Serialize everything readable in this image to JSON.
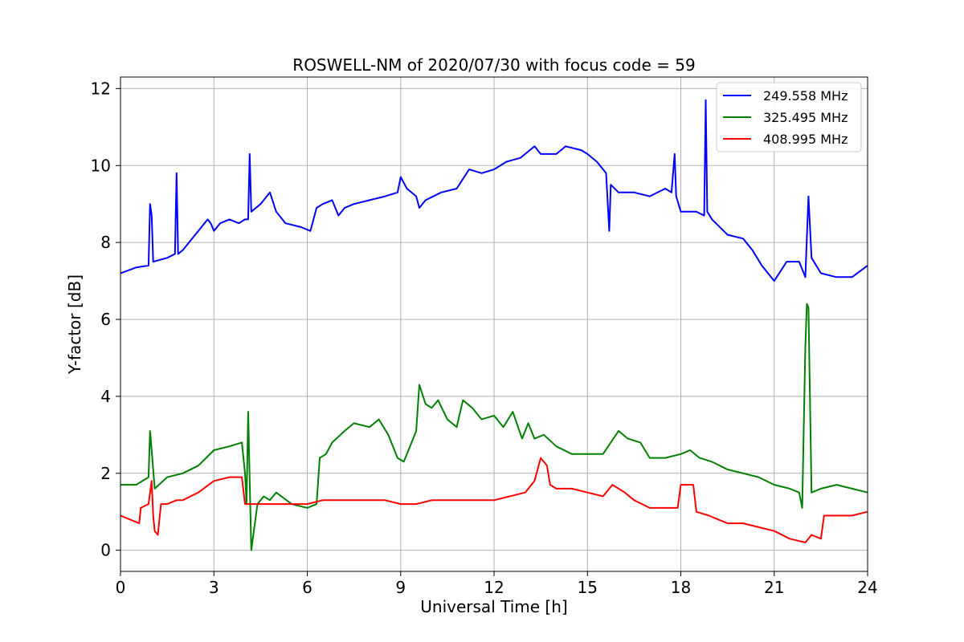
{
  "chart_data": {
    "type": "line",
    "title": "ROSWELL-NM of 2020/07/30 with focus code = 59",
    "xlabel": "Universal Time [h]",
    "ylabel": "Y-factor [dB]",
    "xlim": [
      0,
      24
    ],
    "ylim": [
      -0.55,
      12.3
    ],
    "xticks": [
      0,
      3,
      6,
      9,
      12,
      15,
      18,
      21,
      24
    ],
    "yticks": [
      0,
      2,
      4,
      6,
      8,
      10,
      12
    ],
    "grid": true,
    "legend_position": "top-right",
    "series": [
      {
        "name": "249.558 MHz",
        "color": "#0000ff",
        "points": [
          [
            0,
            7.2
          ],
          [
            0.5,
            7.35
          ],
          [
            0.9,
            7.4
          ],
          [
            0.95,
            9.0
          ],
          [
            1.0,
            8.7
          ],
          [
            1.05,
            7.5
          ],
          [
            1.5,
            7.6
          ],
          [
            1.75,
            7.7
          ],
          [
            1.8,
            9.8
          ],
          [
            1.85,
            7.7
          ],
          [
            2.0,
            7.8
          ],
          [
            2.5,
            8.3
          ],
          [
            2.8,
            8.6
          ],
          [
            2.9,
            8.5
          ],
          [
            3.0,
            8.3
          ],
          [
            3.2,
            8.5
          ],
          [
            3.5,
            8.6
          ],
          [
            3.8,
            8.5
          ],
          [
            4.0,
            8.6
          ],
          [
            4.1,
            8.6
          ],
          [
            4.15,
            10.3
          ],
          [
            4.2,
            8.8
          ],
          [
            4.5,
            9.0
          ],
          [
            4.8,
            9.3
          ],
          [
            5.0,
            8.8
          ],
          [
            5.3,
            8.5
          ],
          [
            5.8,
            8.4
          ],
          [
            6.1,
            8.3
          ],
          [
            6.3,
            8.9
          ],
          [
            6.5,
            9.0
          ],
          [
            6.8,
            9.1
          ],
          [
            7.0,
            8.7
          ],
          [
            7.2,
            8.9
          ],
          [
            7.5,
            9.0
          ],
          [
            8.0,
            9.1
          ],
          [
            8.5,
            9.2
          ],
          [
            8.9,
            9.3
          ],
          [
            9.0,
            9.7
          ],
          [
            9.2,
            9.4
          ],
          [
            9.5,
            9.2
          ],
          [
            9.6,
            8.9
          ],
          [
            9.8,
            9.1
          ],
          [
            10.3,
            9.3
          ],
          [
            10.8,
            9.4
          ],
          [
            11.2,
            9.9
          ],
          [
            11.6,
            9.8
          ],
          [
            12.0,
            9.9
          ],
          [
            12.4,
            10.1
          ],
          [
            12.85,
            10.2
          ],
          [
            13.0,
            10.3
          ],
          [
            13.3,
            10.5
          ],
          [
            13.5,
            10.3
          ],
          [
            14.0,
            10.3
          ],
          [
            14.3,
            10.5
          ],
          [
            14.8,
            10.4
          ],
          [
            15.0,
            10.3
          ],
          [
            15.3,
            10.1
          ],
          [
            15.6,
            9.8
          ],
          [
            15.7,
            8.3
          ],
          [
            15.75,
            9.5
          ],
          [
            16.0,
            9.3
          ],
          [
            16.5,
            9.3
          ],
          [
            17.0,
            9.2
          ],
          [
            17.5,
            9.4
          ],
          [
            17.7,
            9.3
          ],
          [
            17.8,
            10.3
          ],
          [
            17.85,
            9.2
          ],
          [
            18.0,
            8.8
          ],
          [
            18.5,
            8.8
          ],
          [
            18.75,
            8.7
          ],
          [
            18.8,
            11.7
          ],
          [
            18.85,
            8.8
          ],
          [
            19.0,
            8.6
          ],
          [
            19.5,
            8.2
          ],
          [
            20.0,
            8.1
          ],
          [
            20.3,
            7.8
          ],
          [
            20.6,
            7.4
          ],
          [
            21.0,
            7.0
          ],
          [
            21.4,
            7.5
          ],
          [
            21.8,
            7.5
          ],
          [
            22.0,
            7.1
          ],
          [
            22.1,
            9.2
          ],
          [
            22.2,
            7.6
          ],
          [
            22.5,
            7.2
          ],
          [
            23.0,
            7.1
          ],
          [
            23.5,
            7.1
          ],
          [
            24.0,
            7.4
          ]
        ]
      },
      {
        "name": "325.495 MHz",
        "color": "#008000",
        "points": [
          [
            0,
            1.7
          ],
          [
            0.5,
            1.7
          ],
          [
            0.9,
            1.9
          ],
          [
            0.95,
            3.1
          ],
          [
            1.0,
            2.6
          ],
          [
            1.1,
            1.6
          ],
          [
            1.5,
            1.9
          ],
          [
            2.0,
            2.0
          ],
          [
            2.5,
            2.2
          ],
          [
            3.0,
            2.6
          ],
          [
            3.5,
            2.7
          ],
          [
            3.9,
            2.8
          ],
          [
            4.0,
            2.0
          ],
          [
            4.05,
            1.2
          ],
          [
            4.1,
            3.6
          ],
          [
            4.2,
            0.0
          ],
          [
            4.4,
            1.2
          ],
          [
            4.6,
            1.4
          ],
          [
            4.8,
            1.3
          ],
          [
            5.0,
            1.5
          ],
          [
            5.5,
            1.2
          ],
          [
            6.0,
            1.1
          ],
          [
            6.3,
            1.2
          ],
          [
            6.4,
            2.4
          ],
          [
            6.6,
            2.5
          ],
          [
            6.8,
            2.8
          ],
          [
            7.2,
            3.1
          ],
          [
            7.5,
            3.3
          ],
          [
            8.0,
            3.2
          ],
          [
            8.3,
            3.4
          ],
          [
            8.6,
            3.0
          ],
          [
            8.9,
            2.4
          ],
          [
            9.1,
            2.3
          ],
          [
            9.3,
            2.7
          ],
          [
            9.5,
            3.1
          ],
          [
            9.6,
            4.3
          ],
          [
            9.8,
            3.8
          ],
          [
            10.0,
            3.7
          ],
          [
            10.2,
            3.9
          ],
          [
            10.5,
            3.4
          ],
          [
            10.8,
            3.2
          ],
          [
            11.0,
            3.9
          ],
          [
            11.3,
            3.7
          ],
          [
            11.6,
            3.4
          ],
          [
            12.0,
            3.5
          ],
          [
            12.3,
            3.2
          ],
          [
            12.6,
            3.6
          ],
          [
            12.9,
            2.9
          ],
          [
            13.1,
            3.3
          ],
          [
            13.3,
            2.9
          ],
          [
            13.6,
            3.0
          ],
          [
            14.0,
            2.7
          ],
          [
            14.5,
            2.5
          ],
          [
            15.0,
            2.5
          ],
          [
            15.5,
            2.5
          ],
          [
            16.0,
            3.1
          ],
          [
            16.3,
            2.9
          ],
          [
            16.7,
            2.8
          ],
          [
            17.0,
            2.4
          ],
          [
            17.5,
            2.4
          ],
          [
            18.0,
            2.5
          ],
          [
            18.3,
            2.6
          ],
          [
            18.6,
            2.4
          ],
          [
            19.0,
            2.3
          ],
          [
            19.5,
            2.1
          ],
          [
            20.0,
            2.0
          ],
          [
            20.5,
            1.9
          ],
          [
            21.0,
            1.7
          ],
          [
            21.5,
            1.6
          ],
          [
            21.8,
            1.5
          ],
          [
            21.9,
            1.1
          ],
          [
            22.0,
            5.3
          ],
          [
            22.05,
            6.4
          ],
          [
            22.1,
            6.3
          ],
          [
            22.2,
            1.5
          ],
          [
            22.5,
            1.6
          ],
          [
            23.0,
            1.7
          ],
          [
            23.5,
            1.6
          ],
          [
            24.0,
            1.5
          ]
        ]
      },
      {
        "name": "408.995 MHz",
        "color": "#ff0000",
        "points": [
          [
            0,
            0.9
          ],
          [
            0.3,
            0.8
          ],
          [
            0.6,
            0.7
          ],
          [
            0.65,
            1.1
          ],
          [
            0.9,
            1.2
          ],
          [
            1.0,
            1.8
          ],
          [
            1.05,
            0.9
          ],
          [
            1.1,
            0.5
          ],
          [
            1.2,
            0.4
          ],
          [
            1.3,
            1.2
          ],
          [
            1.5,
            1.2
          ],
          [
            1.8,
            1.3
          ],
          [
            2.0,
            1.3
          ],
          [
            2.5,
            1.5
          ],
          [
            3.0,
            1.8
          ],
          [
            3.5,
            1.9
          ],
          [
            3.9,
            1.9
          ],
          [
            4.0,
            1.2
          ],
          [
            4.3,
            1.2
          ],
          [
            5.0,
            1.2
          ],
          [
            5.5,
            1.2
          ],
          [
            6.0,
            1.2
          ],
          [
            6.5,
            1.3
          ],
          [
            7.0,
            1.3
          ],
          [
            7.5,
            1.3
          ],
          [
            8.0,
            1.3
          ],
          [
            8.5,
            1.3
          ],
          [
            9.0,
            1.2
          ],
          [
            9.5,
            1.2
          ],
          [
            10.0,
            1.3
          ],
          [
            10.5,
            1.3
          ],
          [
            11.0,
            1.3
          ],
          [
            11.5,
            1.3
          ],
          [
            12.0,
            1.3
          ],
          [
            12.5,
            1.4
          ],
          [
            13.0,
            1.5
          ],
          [
            13.3,
            1.8
          ],
          [
            13.5,
            2.4
          ],
          [
            13.7,
            2.2
          ],
          [
            13.8,
            1.7
          ],
          [
            14.0,
            1.6
          ],
          [
            14.5,
            1.6
          ],
          [
            15.0,
            1.5
          ],
          [
            15.5,
            1.4
          ],
          [
            15.8,
            1.7
          ],
          [
            16.0,
            1.6
          ],
          [
            16.2,
            1.5
          ],
          [
            16.5,
            1.3
          ],
          [
            17.0,
            1.1
          ],
          [
            17.5,
            1.1
          ],
          [
            17.9,
            1.1
          ],
          [
            18.0,
            1.7
          ],
          [
            18.4,
            1.7
          ],
          [
            18.5,
            1.0
          ],
          [
            18.9,
            0.9
          ],
          [
            19.5,
            0.7
          ],
          [
            20.0,
            0.7
          ],
          [
            20.5,
            0.6
          ],
          [
            21.0,
            0.5
          ],
          [
            21.5,
            0.3
          ],
          [
            22.0,
            0.2
          ],
          [
            22.2,
            0.4
          ],
          [
            22.5,
            0.3
          ],
          [
            22.6,
            0.9
          ],
          [
            23.0,
            0.9
          ],
          [
            23.5,
            0.9
          ],
          [
            24.0,
            1.0
          ]
        ]
      }
    ]
  }
}
